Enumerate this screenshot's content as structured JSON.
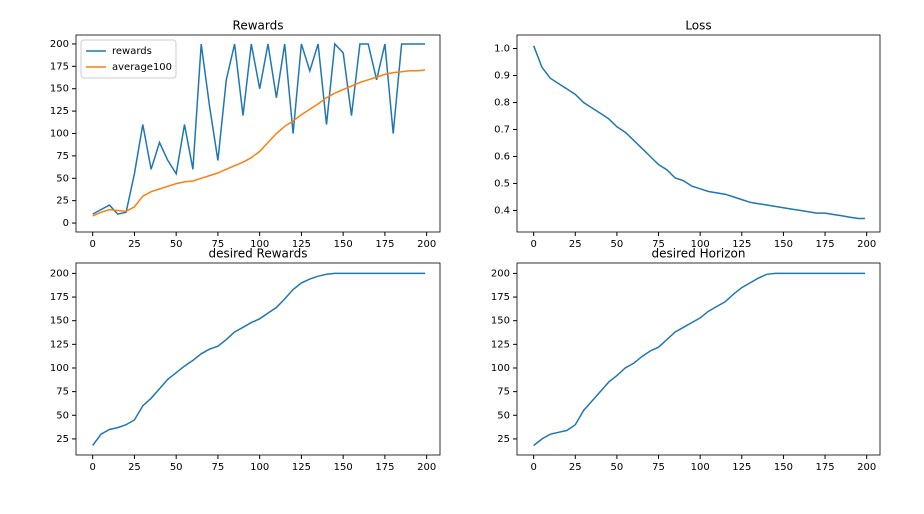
{
  "chart_data": [
    {
      "type": "line",
      "title": "Rewards",
      "legend": "upper left",
      "x": [
        0,
        5,
        10,
        15,
        20,
        25,
        30,
        35,
        40,
        45,
        50,
        55,
        60,
        65,
        70,
        75,
        80,
        85,
        90,
        95,
        100,
        105,
        110,
        115,
        120,
        125,
        130,
        135,
        140,
        145,
        150,
        155,
        160,
        165,
        170,
        175,
        180,
        185,
        190,
        195,
        199
      ],
      "series": [
        {
          "name": "rewards",
          "color": "#1f77b4",
          "values": [
            10,
            15,
            20,
            10,
            12,
            55,
            110,
            60,
            90,
            70,
            55,
            110,
            60,
            200,
            130,
            70,
            160,
            200,
            120,
            200,
            150,
            200,
            140,
            200,
            100,
            200,
            170,
            200,
            110,
            200,
            190,
            120,
            200,
            200,
            160,
            200,
            100,
            200,
            200,
            200,
            200
          ]
        },
        {
          "name": "average100",
          "color": "#ff7f0e",
          "values": [
            8,
            12,
            15,
            14,
            13,
            18,
            30,
            35,
            38,
            41,
            44,
            46,
            47,
            50,
            53,
            56,
            60,
            64,
            68,
            73,
            80,
            90,
            100,
            108,
            114,
            121,
            127,
            133,
            140,
            145,
            149,
            153,
            157,
            160,
            163,
            166,
            168,
            169,
            170,
            170,
            171
          ]
        }
      ],
      "xlim": [
        -10,
        208
      ],
      "xticks": [
        0,
        25,
        50,
        75,
        100,
        125,
        150,
        175,
        200
      ],
      "ylim": [
        -10,
        210
      ],
      "yticks": [
        0,
        25,
        50,
        75,
        100,
        125,
        150,
        175,
        200
      ]
    },
    {
      "type": "line",
      "title": "Loss",
      "x": [
        0,
        5,
        10,
        15,
        20,
        25,
        30,
        35,
        40,
        45,
        50,
        55,
        60,
        65,
        70,
        75,
        80,
        85,
        90,
        95,
        100,
        105,
        110,
        115,
        120,
        125,
        130,
        135,
        140,
        145,
        150,
        155,
        160,
        165,
        170,
        175,
        180,
        185,
        190,
        195,
        199
      ],
      "series": [
        {
          "color": "#1f77b4",
          "values": [
            1.01,
            0.93,
            0.89,
            0.87,
            0.85,
            0.83,
            0.8,
            0.78,
            0.76,
            0.74,
            0.71,
            0.69,
            0.66,
            0.63,
            0.6,
            0.57,
            0.55,
            0.52,
            0.51,
            0.49,
            0.48,
            0.47,
            0.465,
            0.46,
            0.45,
            0.44,
            0.43,
            0.425,
            0.42,
            0.415,
            0.41,
            0.405,
            0.4,
            0.395,
            0.39,
            0.39,
            0.385,
            0.38,
            0.375,
            0.37,
            0.37
          ]
        }
      ],
      "xlim": [
        -10,
        208
      ],
      "xticks": [
        0,
        25,
        50,
        75,
        100,
        125,
        150,
        175,
        200
      ],
      "ylim": [
        0.32,
        1.05
      ],
      "yticks": [
        0.4,
        0.5,
        0.6,
        0.7,
        0.8,
        0.9,
        {
          "value": 1,
          "label": "1.0"
        }
      ]
    },
    {
      "type": "line",
      "title": "desired Rewards",
      "x": [
        0,
        5,
        10,
        15,
        20,
        25,
        30,
        35,
        40,
        45,
        50,
        55,
        60,
        65,
        70,
        75,
        80,
        85,
        90,
        95,
        100,
        105,
        110,
        115,
        120,
        125,
        130,
        135,
        140,
        145,
        150,
        155,
        160,
        165,
        170,
        175,
        180,
        185,
        190,
        195,
        199
      ],
      "series": [
        {
          "color": "#1f77b4",
          "values": [
            18,
            30,
            35,
            37,
            40,
            45,
            60,
            68,
            78,
            88,
            95,
            102,
            108,
            115,
            120,
            123,
            130,
            138,
            143,
            148,
            152,
            158,
            164,
            173,
            183,
            190,
            194,
            197,
            199,
            200,
            200,
            200,
            200,
            200,
            200,
            200,
            200,
            200,
            200,
            200,
            200
          ]
        }
      ],
      "xlim": [
        -10,
        208
      ],
      "xticks": [
        0,
        25,
        50,
        75,
        100,
        125,
        150,
        175,
        200
      ],
      "ylim": [
        8,
        211
      ],
      "yticks": [
        25,
        50,
        75,
        100,
        125,
        150,
        175,
        200
      ]
    },
    {
      "type": "line",
      "title": "desired Horizon",
      "x": [
        0,
        5,
        10,
        15,
        20,
        25,
        30,
        35,
        40,
        45,
        50,
        55,
        60,
        65,
        70,
        75,
        80,
        85,
        90,
        95,
        100,
        105,
        110,
        115,
        120,
        125,
        130,
        135,
        140,
        145,
        150,
        155,
        160,
        165,
        170,
        175,
        180,
        185,
        190,
        195,
        199
      ],
      "series": [
        {
          "color": "#1f77b4",
          "values": [
            18,
            25,
            30,
            32,
            34,
            40,
            55,
            65,
            75,
            85,
            92,
            100,
            105,
            112,
            118,
            122,
            130,
            138,
            143,
            148,
            153,
            160,
            165,
            170,
            178,
            185,
            190,
            195,
            199,
            200,
            200,
            200,
            200,
            200,
            200,
            200,
            200,
            200,
            200,
            200,
            200
          ]
        }
      ],
      "xlim": [
        -10,
        208
      ],
      "xticks": [
        0,
        25,
        50,
        75,
        100,
        125,
        150,
        175,
        200
      ],
      "ylim": [
        8,
        211
      ],
      "yticks": [
        25,
        50,
        75,
        100,
        125,
        150,
        175,
        200
      ]
    }
  ]
}
